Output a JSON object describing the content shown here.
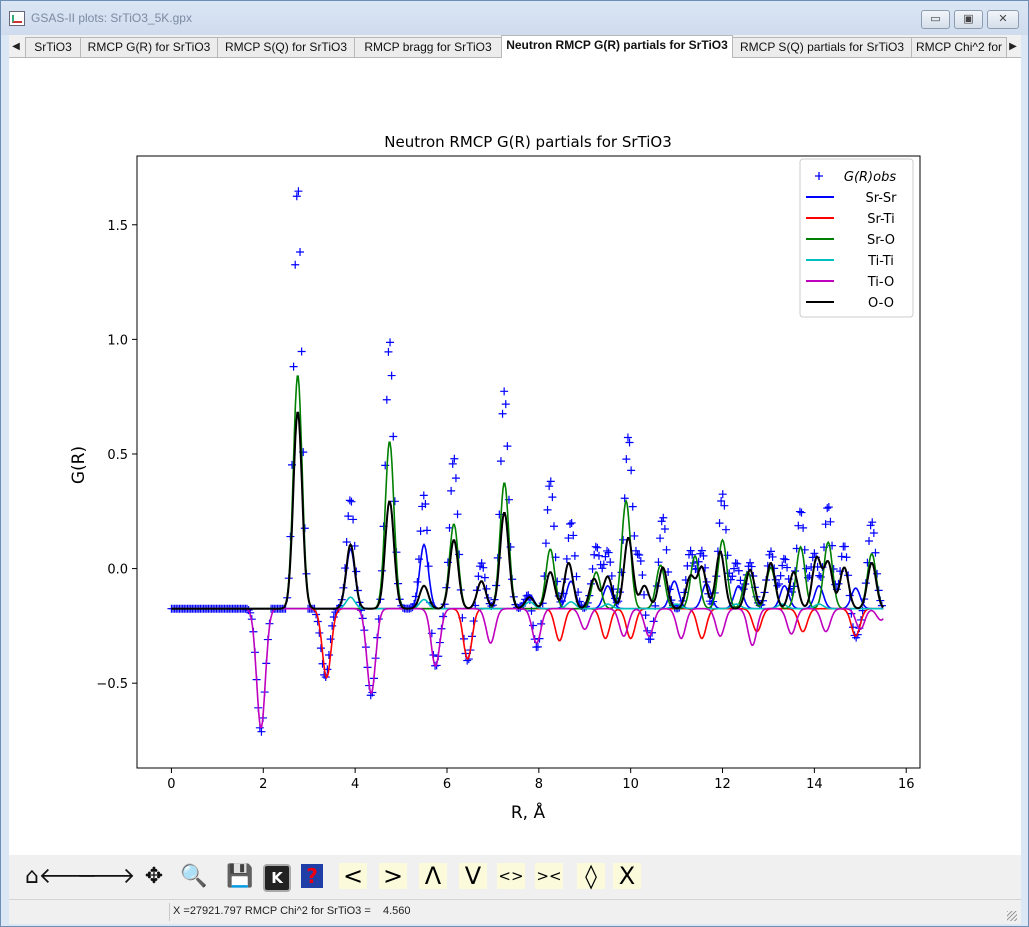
{
  "window": {
    "title": "GSAS-II plots: SrTiO3_5K.gpx",
    "minimize_glyph": "▭",
    "maximize_glyph": "▣",
    "close_glyph": "✕"
  },
  "tabs": [
    {
      "label": "SrTiO3",
      "active": false
    },
    {
      "label": "RMCP G(R) for SrTiO3",
      "active": false
    },
    {
      "label": "RMCP S(Q) for SrTiO3",
      "active": false
    },
    {
      "label": "RMCP bragg for SrTiO3",
      "active": false
    },
    {
      "label": "Neutron RMCP G(R) partials for SrTiO3",
      "active": true
    },
    {
      "label": "RMCP S(Q) partials for SrTiO3",
      "active": false
    },
    {
      "label": "RMCP Chi^2 for",
      "active": false
    }
  ],
  "tab_scroll": {
    "left": "◀",
    "right": "▶"
  },
  "toolbar": {
    "buttons": [
      {
        "name": "home-icon",
        "glyph": "⌂"
      },
      {
        "name": "back-arrow-icon",
        "glyph": "🡐"
      },
      {
        "name": "forward-arrow-icon",
        "glyph": "🡒"
      },
      {
        "name": "pan-icon",
        "glyph": "✥"
      },
      {
        "name": "zoom-icon",
        "glyph": "🔍"
      },
      {
        "name": "save-icon",
        "glyph": "💾"
      },
      {
        "name": "keypress-icon",
        "glyph": "K"
      },
      {
        "name": "help-icon",
        "glyph": "?"
      },
      {
        "name": "shift-left-icon",
        "glyph": "<"
      },
      {
        "name": "shift-right-icon",
        "glyph": ">"
      },
      {
        "name": "shift-up-icon",
        "glyph": "Λ"
      },
      {
        "name": "shift-down-icon",
        "glyph": "V"
      },
      {
        "name": "expand-x-icon",
        "glyph": "<>"
      },
      {
        "name": "contract-x-icon",
        "glyph": "><"
      },
      {
        "name": "expand-y-icon",
        "glyph": "◊"
      },
      {
        "name": "contract-y-icon",
        "glyph": "X"
      }
    ]
  },
  "status": {
    "text": "X =27921.797 RMCP Chi^2 for SrTiO3 =    4.560"
  },
  "chart_data": {
    "type": "line",
    "title": "Neutron RMCP G(R) partials for SrTiO3",
    "xlabel": "R, Å",
    "ylabel": "G(R)",
    "xlim": [
      -0.75,
      16.3
    ],
    "ylim": [
      -0.87,
      1.8
    ],
    "xticks": [
      "0",
      "2",
      "4",
      "6",
      "8",
      "10",
      "12",
      "14",
      "16"
    ],
    "yticks": [
      "−0.5",
      "0.0",
      "0.5",
      "1.0",
      "1.5"
    ],
    "grid": false,
    "legend_position": "top-right",
    "baseline": -0.175,
    "observed_label": "G(R)obs",
    "observed_color": "#0000ff",
    "observed_peaks": [
      {
        "r": 2.75,
        "height": 1.85
      },
      {
        "r": 3.9,
        "height": 0.48
      },
      {
        "r": 4.75,
        "height": 1.17
      },
      {
        "r": 5.5,
        "height": 0.5
      },
      {
        "r": 6.15,
        "height": 0.66
      },
      {
        "r": 6.75,
        "height": 0.2
      },
      {
        "r": 7.25,
        "height": 0.95
      },
      {
        "r": 7.8,
        "height": 0.09
      },
      {
        "r": 8.25,
        "height": 0.56
      },
      {
        "r": 8.7,
        "height": 0.38
      },
      {
        "r": 9.25,
        "height": 0.27
      },
      {
        "r": 9.5,
        "height": 0.25
      },
      {
        "r": 9.95,
        "height": 0.75
      },
      {
        "r": 10.2,
        "height": 0.23
      },
      {
        "r": 10.7,
        "height": 0.4
      },
      {
        "r": 11.3,
        "height": 0.25
      },
      {
        "r": 11.55,
        "height": 0.25
      },
      {
        "r": 12.0,
        "height": 0.5
      },
      {
        "r": 12.3,
        "height": 0.2
      },
      {
        "r": 12.6,
        "height": 0.2
      },
      {
        "r": 13.05,
        "height": 0.25
      },
      {
        "r": 13.35,
        "height": 0.22
      },
      {
        "r": 13.7,
        "height": 0.43
      },
      {
        "r": 14.0,
        "height": 0.24
      },
      {
        "r": 14.3,
        "height": 0.45
      },
      {
        "r": 14.65,
        "height": 0.28
      },
      {
        "r": 15.25,
        "height": 0.38
      }
    ],
    "observed_negative": [
      {
        "r": 1.95,
        "depth": 0.54
      },
      {
        "r": 3.35,
        "depth": 0.3
      },
      {
        "r": 4.35,
        "depth": 0.38
      },
      {
        "r": 5.75,
        "depth": 0.26
      },
      {
        "r": 6.45,
        "depth": 0.23
      },
      {
        "r": 7.95,
        "depth": 0.19
      },
      {
        "r": 10.4,
        "depth": 0.15
      },
      {
        "r": 14.9,
        "depth": 0.13
      }
    ],
    "series": [
      {
        "name": "Sr-Sr",
        "color": "#0000ff",
        "peaks": [
          [
            3.9,
            0.26
          ],
          [
            5.5,
            0.28
          ],
          [
            7.8,
            0.06
          ],
          [
            8.7,
            0.12
          ],
          [
            9.5,
            0.1
          ],
          [
            10.95,
            0.12
          ],
          [
            11.65,
            0.11
          ],
          [
            12.35,
            0.1
          ],
          [
            13.35,
            0.1
          ],
          [
            14.1,
            0.1
          ],
          [
            14.9,
            0.09
          ]
        ]
      },
      {
        "name": "Sr-Ti",
        "color": "#ff0000",
        "peaks": [
          [
            3.38,
            -0.3
          ],
          [
            6.45,
            -0.22
          ],
          [
            8.45,
            -0.14
          ],
          [
            9.45,
            -0.13
          ],
          [
            10.0,
            -0.13
          ],
          [
            11.55,
            -0.13
          ],
          [
            12.75,
            -0.1
          ],
          [
            13.75,
            -0.1
          ],
          [
            14.9,
            -0.12
          ]
        ]
      },
      {
        "name": "Sr-O",
        "color": "#008000",
        "peaks": [
          [
            2.75,
            1.02
          ],
          [
            4.75,
            0.73
          ],
          [
            6.15,
            0.37
          ],
          [
            7.25,
            0.55
          ],
          [
            8.25,
            0.26
          ],
          [
            9.25,
            0.16
          ],
          [
            9.9,
            0.47
          ],
          [
            10.65,
            0.19
          ],
          [
            11.4,
            0.23
          ],
          [
            12.0,
            0.3
          ],
          [
            12.55,
            0.16
          ],
          [
            13.05,
            0.18
          ],
          [
            13.7,
            0.27
          ],
          [
            14.3,
            0.29
          ],
          [
            15.25,
            0.24
          ]
        ]
      },
      {
        "name": "Ti-Ti",
        "color": "#00bfbf",
        "peaks": [
          [
            3.9,
            0.05
          ],
          [
            5.5,
            0.04
          ],
          [
            7.8,
            0.03
          ],
          [
            8.7,
            0.03
          ],
          [
            9.5,
            0.02
          ],
          [
            11.0,
            0.02
          ],
          [
            12.3,
            0.02
          ],
          [
            13.3,
            0.02
          ],
          [
            14.1,
            0.02
          ]
        ]
      },
      {
        "name": "Ti-O",
        "color": "#bf00bf",
        "peaks": [
          [
            1.95,
            -0.52
          ],
          [
            4.35,
            -0.37
          ],
          [
            5.75,
            -0.25
          ],
          [
            6.95,
            -0.15
          ],
          [
            7.95,
            -0.15
          ],
          [
            9.0,
            -0.09
          ],
          [
            9.85,
            -0.12
          ],
          [
            10.4,
            -0.12
          ],
          [
            11.1,
            -0.13
          ],
          [
            11.95,
            -0.12
          ],
          [
            12.65,
            -0.16
          ],
          [
            13.5,
            -0.11
          ],
          [
            14.25,
            -0.1
          ],
          [
            15.0,
            -0.09
          ],
          [
            15.45,
            -0.05
          ]
        ]
      },
      {
        "name": "O-O",
        "color": "#000000",
        "peaks": [
          [
            2.75,
            0.86
          ],
          [
            3.9,
            0.28
          ],
          [
            4.75,
            0.47
          ],
          [
            5.5,
            0.1
          ],
          [
            6.15,
            0.3
          ],
          [
            6.75,
            0.12
          ],
          [
            7.25,
            0.42
          ],
          [
            7.8,
            0.05
          ],
          [
            8.25,
            0.16
          ],
          [
            8.65,
            0.2
          ],
          [
            9.2,
            0.13
          ],
          [
            9.5,
            0.14
          ],
          [
            9.95,
            0.31
          ],
          [
            10.3,
            0.1
          ],
          [
            10.7,
            0.18
          ],
          [
            11.3,
            0.14
          ],
          [
            11.55,
            0.18
          ],
          [
            11.95,
            0.25
          ],
          [
            12.6,
            0.17
          ],
          [
            13.05,
            0.2
          ],
          [
            13.55,
            0.16
          ],
          [
            14.05,
            0.22
          ],
          [
            14.3,
            0.2
          ],
          [
            14.65,
            0.18
          ],
          [
            15.25,
            0.2
          ]
        ]
      }
    ]
  }
}
